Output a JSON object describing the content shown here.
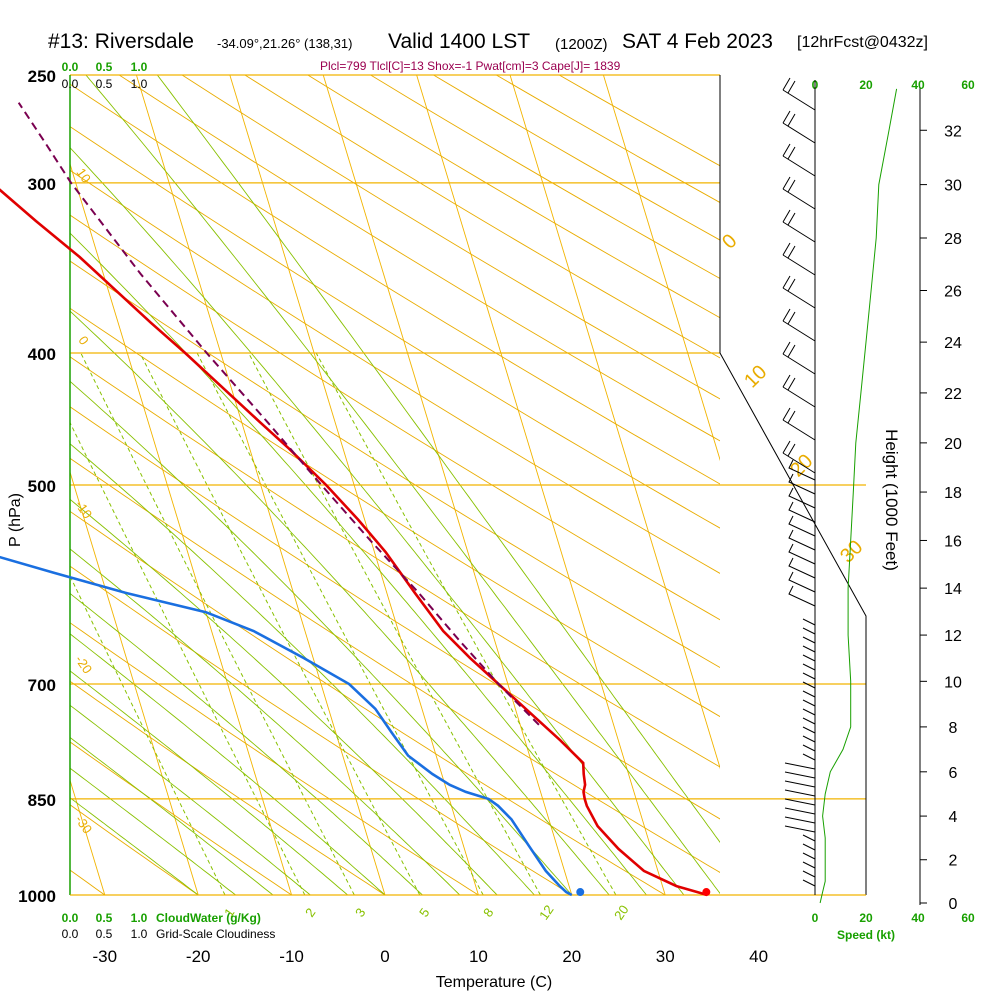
{
  "header": {
    "station": "#13: Riversdale",
    "coords": "-34.09°,21.26° (138,31)",
    "valid": "Valid 1400 LST",
    "utc": "(1200Z)",
    "date": "SAT 4 Feb 2023",
    "forecast": "[12hrFcst@0432z]",
    "params": "Plcl=799 Tlcl[C]=13 Shox=-1 Pwat[cm]=3 Cape[J]= 1839"
  },
  "colors": {
    "isobar": "#f2b400",
    "dry_adiabat": "#e9ac00",
    "moist_adiabat": "#88c100",
    "mixing_ratio": "#88c100",
    "temperature": "#e00000",
    "dewpoint": "#1a6fe0",
    "parcel": "#7a0050",
    "scale_green": "#18a000",
    "params_text": "#9a0050"
  },
  "chart_data": {
    "type": "line",
    "title": "#13: Riversdale",
    "xlabel": "Temperature (C)",
    "ylabel": "P (hPa)",
    "y2label": "Height (1000 Feet)",
    "xlim": [
      -35,
      45
    ],
    "ylim": [
      1000,
      250
    ],
    "pressure_ticks": [
      250,
      300,
      400,
      500,
      700,
      850,
      1000
    ],
    "temperature_ticks": [
      -30,
      -20,
      -10,
      0,
      10,
      20,
      30,
      40
    ],
    "height_ticks_kft": [
      0,
      2,
      4,
      6,
      8,
      10,
      12,
      14,
      16,
      18,
      20,
      22,
      24,
      26,
      28,
      30,
      32
    ],
    "speed_axis_label": "Speed (kt)",
    "speed_ticks": [
      "0",
      "20",
      "40",
      "60"
    ],
    "cloudwater_label": "CloudWater (g/Kg)",
    "cloudiness_label": "Grid-Scale Cloudiness",
    "cloud_scale_ticks": [
      "0.0",
      "0.5",
      "1.0"
    ],
    "mixing_ratio_labels": [
      "1",
      "2",
      "3",
      "5",
      "8",
      "12",
      "20"
    ],
    "dry_adiabat_labels": [
      "10",
      "0",
      "-10",
      "-20",
      "-30"
    ],
    "moist_adiabat_labels": [
      "0",
      "10",
      "20",
      "30"
    ],
    "series": [
      {
        "name": "Temperature",
        "points": [
          [
            1000,
            34.5
          ],
          [
            995,
            33.5
          ],
          [
            985,
            31.5
          ],
          [
            960,
            28.5
          ],
          [
            925,
            26.5
          ],
          [
            890,
            25.0
          ],
          [
            860,
            24.5
          ],
          [
            850,
            24.5
          ],
          [
            840,
            24.6
          ],
          [
            830,
            25.0
          ],
          [
            815,
            25.2
          ],
          [
            800,
            25.5
          ],
          [
            770,
            23.8
          ],
          [
            740,
            21.8
          ],
          [
            700,
            19.0
          ],
          [
            670,
            16.8
          ],
          [
            640,
            14.8
          ],
          [
            600,
            13.0
          ],
          [
            560,
            11.2
          ],
          [
            530,
            9.3
          ],
          [
            500,
            7.0
          ],
          [
            470,
            4.2
          ],
          [
            450,
            2.0
          ],
          [
            400,
            -3.8
          ],
          [
            380,
            -6.5
          ],
          [
            340,
            -12.0
          ],
          [
            320,
            -15.5
          ],
          [
            300,
            -19.0
          ],
          [
            285,
            -21.2
          ],
          [
            268,
            -23.0
          ],
          [
            255,
            -25.0
          ]
        ]
      },
      {
        "name": "Dewpoint",
        "points": [
          [
            1000,
            20.0
          ],
          [
            995,
            19.5
          ],
          [
            985,
            19.0
          ],
          [
            960,
            18.0
          ],
          [
            920,
            17.0
          ],
          [
            880,
            16.0
          ],
          [
            860,
            15.0
          ],
          [
            850,
            14.2
          ],
          [
            840,
            12.0
          ],
          [
            830,
            10.5
          ],
          [
            815,
            9.0
          ],
          [
            790,
            7.0
          ],
          [
            760,
            6.0
          ],
          [
            730,
            5.0
          ],
          [
            700,
            3.0
          ],
          [
            670,
            -1.0
          ],
          [
            640,
            -5.5
          ],
          [
            620,
            -10.0
          ],
          [
            600,
            -18.0
          ],
          [
            580,
            -25.0
          ],
          [
            560,
            -32.0
          ],
          [
            540,
            -38.0
          ],
          [
            530,
            -41.0
          ],
          [
            500,
            -43.0
          ],
          [
            480,
            -43.0
          ],
          [
            440,
            -44.0
          ],
          [
            400,
            -45.5
          ],
          [
            380,
            -47.5
          ],
          [
            340,
            -51.5
          ],
          [
            300,
            -58.0
          ],
          [
            285,
            -62.0
          ],
          [
            268,
            -67.0
          ],
          [
            255,
            -72.0
          ]
        ]
      },
      {
        "name": "Parcel",
        "points": [
          [
            750,
            22.0
          ],
          [
            700,
            19.0
          ],
          [
            650,
            16.2
          ],
          [
            600,
            13.4
          ],
          [
            550,
            10.0
          ],
          [
            500,
            6.5
          ],
          [
            450,
            2.8
          ],
          [
            400,
            -1.5
          ],
          [
            350,
            -6.0
          ],
          [
            300,
            -10.5
          ],
          [
            280,
            -12.0
          ],
          [
            262,
            -13.5
          ]
        ]
      }
    ],
    "surface_points": [
      {
        "name": "Surface temperature",
        "pressure": 995,
        "value": 34.5
      },
      {
        "name": "Surface dewpoint",
        "pressure": 995,
        "value": 21.0
      }
    ],
    "wind_speed_profile_kt": [
      [
        0,
        2
      ],
      [
        500,
        3
      ],
      [
        1000,
        4
      ],
      [
        1500,
        4
      ],
      [
        2000,
        4
      ],
      [
        3000,
        4
      ],
      [
        4000,
        3
      ],
      [
        5000,
        4
      ],
      [
        6000,
        6
      ],
      [
        7000,
        11
      ],
      [
        8000,
        14
      ],
      [
        10000,
        14
      ],
      [
        12000,
        13
      ],
      [
        14000,
        13
      ],
      [
        16000,
        14
      ],
      [
        18000,
        15
      ],
      [
        20000,
        16
      ],
      [
        22000,
        18
      ],
      [
        24000,
        20
      ],
      [
        26000,
        22
      ],
      [
        28000,
        24
      ],
      [
        30000,
        25
      ],
      [
        32000,
        29
      ],
      [
        33500,
        32
      ]
    ]
  }
}
